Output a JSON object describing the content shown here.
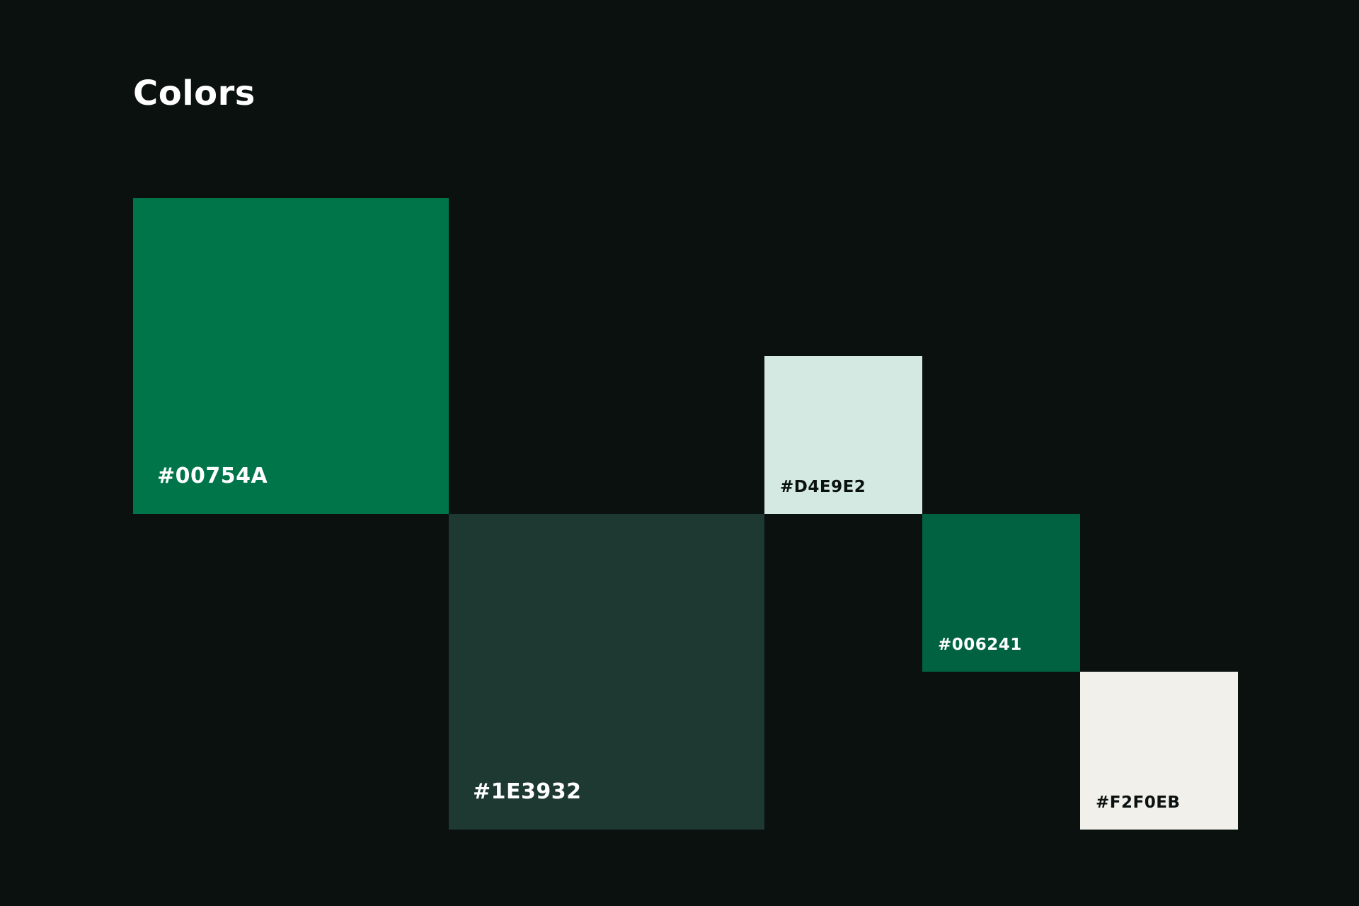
{
  "title": "Colors",
  "swatches": [
    {
      "label": "#00754A",
      "color": "#00754A",
      "text_color": "#FFFFFF"
    },
    {
      "label": "#1E3932",
      "color": "#1E3932",
      "text_color": "#FFFFFF"
    },
    {
      "label": "#D4E9E2",
      "color": "#D4E9E2",
      "text_color": "#0A110F"
    },
    {
      "label": "#006241",
      "color": "#006241",
      "text_color": "#FFFFFF"
    },
    {
      "label": "#F2F0EB",
      "color": "#F2F0EB",
      "text_color": "#0A110F"
    }
  ],
  "background_color": "#0A110F"
}
